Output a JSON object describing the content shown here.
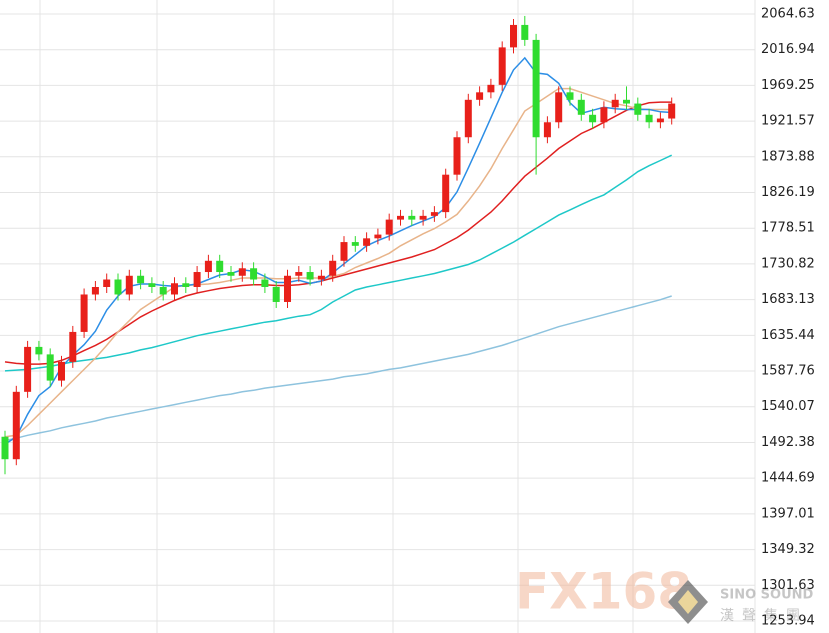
{
  "chart_data": {
    "type": "candlestick",
    "ylim": [
      1237.9,
      2083.3
    ],
    "yticks": [
      2064.63,
      2016.94,
      1969.25,
      1921.57,
      1873.88,
      1826.19,
      1778.51,
      1730.82,
      1683.13,
      1635.44,
      1587.76,
      1540.07,
      1492.38,
      1444.69,
      1397.01,
      1349.32,
      1301.63,
      1253.94
    ],
    "grid": true,
    "up_color": "#e8201a",
    "down_color": "#2fdc2f",
    "open": [
      1500,
      1470,
      1560,
      1620,
      1610,
      1575,
      1600,
      1640,
      1690,
      1700,
      1710,
      1690,
      1715,
      1705,
      1700,
      1690,
      1705,
      1700,
      1720,
      1735,
      1720,
      1715,
      1725,
      1710,
      1700,
      1680,
      1715,
      1720,
      1710,
      1715,
      1735,
      1760,
      1755,
      1765,
      1770,
      1790,
      1795,
      1790,
      1795,
      1800,
      1850,
      1900,
      1950,
      1960,
      1970,
      2020,
      2050,
      2030,
      1900,
      1920,
      1960,
      1950,
      1930,
      1920,
      1940,
      1950,
      1945,
      1930,
      1920,
      1925
    ],
    "high": [
      1508,
      1568,
      1628,
      1628,
      1618,
      1608,
      1648,
      1698,
      1708,
      1718,
      1718,
      1723,
      1723,
      1713,
      1708,
      1713,
      1713,
      1728,
      1743,
      1743,
      1728,
      1733,
      1733,
      1718,
      1708,
      1723,
      1728,
      1728,
      1723,
      1743,
      1768,
      1768,
      1773,
      1778,
      1798,
      1803,
      1803,
      1803,
      1808,
      1858,
      1908,
      1958,
      1968,
      1978,
      2028,
      2058,
      2062,
      2038,
      1928,
      1968,
      1968,
      1958,
      1938,
      1948,
      1958,
      1968,
      1953,
      1938,
      1933,
      1953
    ],
    "low": [
      1450,
      1462,
      1552,
      1602,
      1567,
      1567,
      1592,
      1632,
      1682,
      1692,
      1682,
      1682,
      1697,
      1692,
      1682,
      1682,
      1692,
      1692,
      1712,
      1712,
      1707,
      1707,
      1702,
      1692,
      1672,
      1672,
      1707,
      1702,
      1702,
      1707,
      1727,
      1747,
      1747,
      1757,
      1762,
      1782,
      1782,
      1782,
      1787,
      1792,
      1842,
      1892,
      1942,
      1952,
      1962,
      2012,
      2022,
      1850,
      1892,
      1912,
      1942,
      1922,
      1912,
      1912,
      1932,
      1937,
      1922,
      1912,
      1912,
      1917
    ],
    "close": [
      1470,
      1560,
      1620,
      1610,
      1575,
      1600,
      1640,
      1690,
      1700,
      1710,
      1690,
      1715,
      1705,
      1700,
      1690,
      1705,
      1700,
      1720,
      1735,
      1720,
      1715,
      1725,
      1710,
      1700,
      1680,
      1715,
      1720,
      1710,
      1715,
      1735,
      1760,
      1755,
      1765,
      1770,
      1790,
      1795,
      1790,
      1795,
      1800,
      1850,
      1900,
      1950,
      1960,
      1970,
      2020,
      2050,
      2030,
      1900,
      1920,
      1960,
      1950,
      1930,
      1920,
      1940,
      1950,
      1945,
      1930,
      1920,
      1925,
      1945
    ],
    "series": [
      {
        "color": "#8ec3de",
        "values": [
          1495,
          1498,
          1502,
          1505,
          1508,
          1512,
          1515,
          1518,
          1521,
          1525,
          1528,
          1531,
          1534,
          1537,
          1540,
          1543,
          1546,
          1549,
          1552,
          1555,
          1557,
          1560,
          1562,
          1565,
          1567,
          1569,
          1571,
          1573,
          1575,
          1577,
          1580,
          1582,
          1584,
          1587,
          1590,
          1592,
          1595,
          1598,
          1601,
          1604,
          1607,
          1610,
          1614,
          1618,
          1622,
          1627,
          1632,
          1637,
          1642,
          1647,
          1651,
          1655,
          1659,
          1663,
          1667,
          1671,
          1675,
          1679,
          1683,
          1688
        ]
      },
      {
        "color": "#1ec8c8",
        "values": [
          1588,
          1589,
          1590,
          1592,
          1594,
          1597,
          1600,
          1602,
          1604,
          1606,
          1609,
          1612,
          1616,
          1619,
          1623,
          1627,
          1631,
          1635,
          1638,
          1641,
          1644,
          1647,
          1650,
          1653,
          1655,
          1658,
          1661,
          1663,
          1670,
          1680,
          1688,
          1696,
          1700,
          1703,
          1706,
          1709,
          1712,
          1715,
          1718,
          1722,
          1726,
          1730,
          1736,
          1744,
          1752,
          1760,
          1769,
          1778,
          1787,
          1796,
          1803,
          1810,
          1817,
          1823,
          1833,
          1843,
          1854,
          1862,
          1869,
          1876
        ]
      },
      {
        "color": "#e02020",
        "values": [
          1600,
          1598,
          1597,
          1597,
          1598,
          1602,
          1608,
          1615,
          1622,
          1630,
          1640,
          1650,
          1660,
          1668,
          1675,
          1682,
          1688,
          1692,
          1695,
          1698,
          1700,
          1702,
          1703,
          1703,
          1702,
          1702,
          1703,
          1705,
          1708,
          1712,
          1716,
          1720,
          1724,
          1728,
          1732,
          1736,
          1740,
          1745,
          1750,
          1758,
          1766,
          1776,
          1788,
          1800,
          1815,
          1832,
          1848,
          1860,
          1872,
          1885,
          1895,
          1905,
          1912,
          1920,
          1928,
          1936,
          1942,
          1946,
          1947,
          1947
        ]
      },
      {
        "color": "#e8b48a",
        "values": [
          1500,
          1502,
          1515,
          1530,
          1545,
          1560,
          1575,
          1590,
          1605,
          1622,
          1640,
          1655,
          1670,
          1680,
          1690,
          1700,
          1702,
          1703,
          1704,
          1706,
          1709,
          1712,
          1712,
          1712,
          1711,
          1711,
          1712,
          1712,
          1712,
          1714,
          1718,
          1726,
          1732,
          1738,
          1745,
          1755,
          1763,
          1771,
          1778,
          1787,
          1797,
          1815,
          1835,
          1858,
          1885,
          1910,
          1935,
          1945,
          1955,
          1965,
          1965,
          1960,
          1955,
          1950,
          1945,
          1942,
          1938,
          1937,
          1937,
          1937
        ]
      },
      {
        "color": "#2c8ee6",
        "values": [
          1490,
          1500,
          1530,
          1555,
          1567,
          1593,
          1609,
          1623,
          1641,
          1669,
          1688,
          1701,
          1704,
          1704,
          1702,
          1701,
          1702,
          1704,
          1710,
          1716,
          1718,
          1723,
          1721,
          1714,
          1706,
          1706,
          1709,
          1705,
          1708,
          1719,
          1731,
          1743,
          1755,
          1762,
          1768,
          1775,
          1782,
          1788,
          1794,
          1806,
          1827,
          1859,
          1892,
          1926,
          1960,
          1990,
          2006,
          1986,
          1984,
          1972,
          1946,
          1932,
          1936,
          1940,
          1938,
          1937,
          1937,
          1937,
          1934,
          1933
        ]
      }
    ],
    "watermark": {
      "brand": "FX168",
      "english": "SINO SOUND",
      "chinese": "漢聲集團"
    }
  }
}
